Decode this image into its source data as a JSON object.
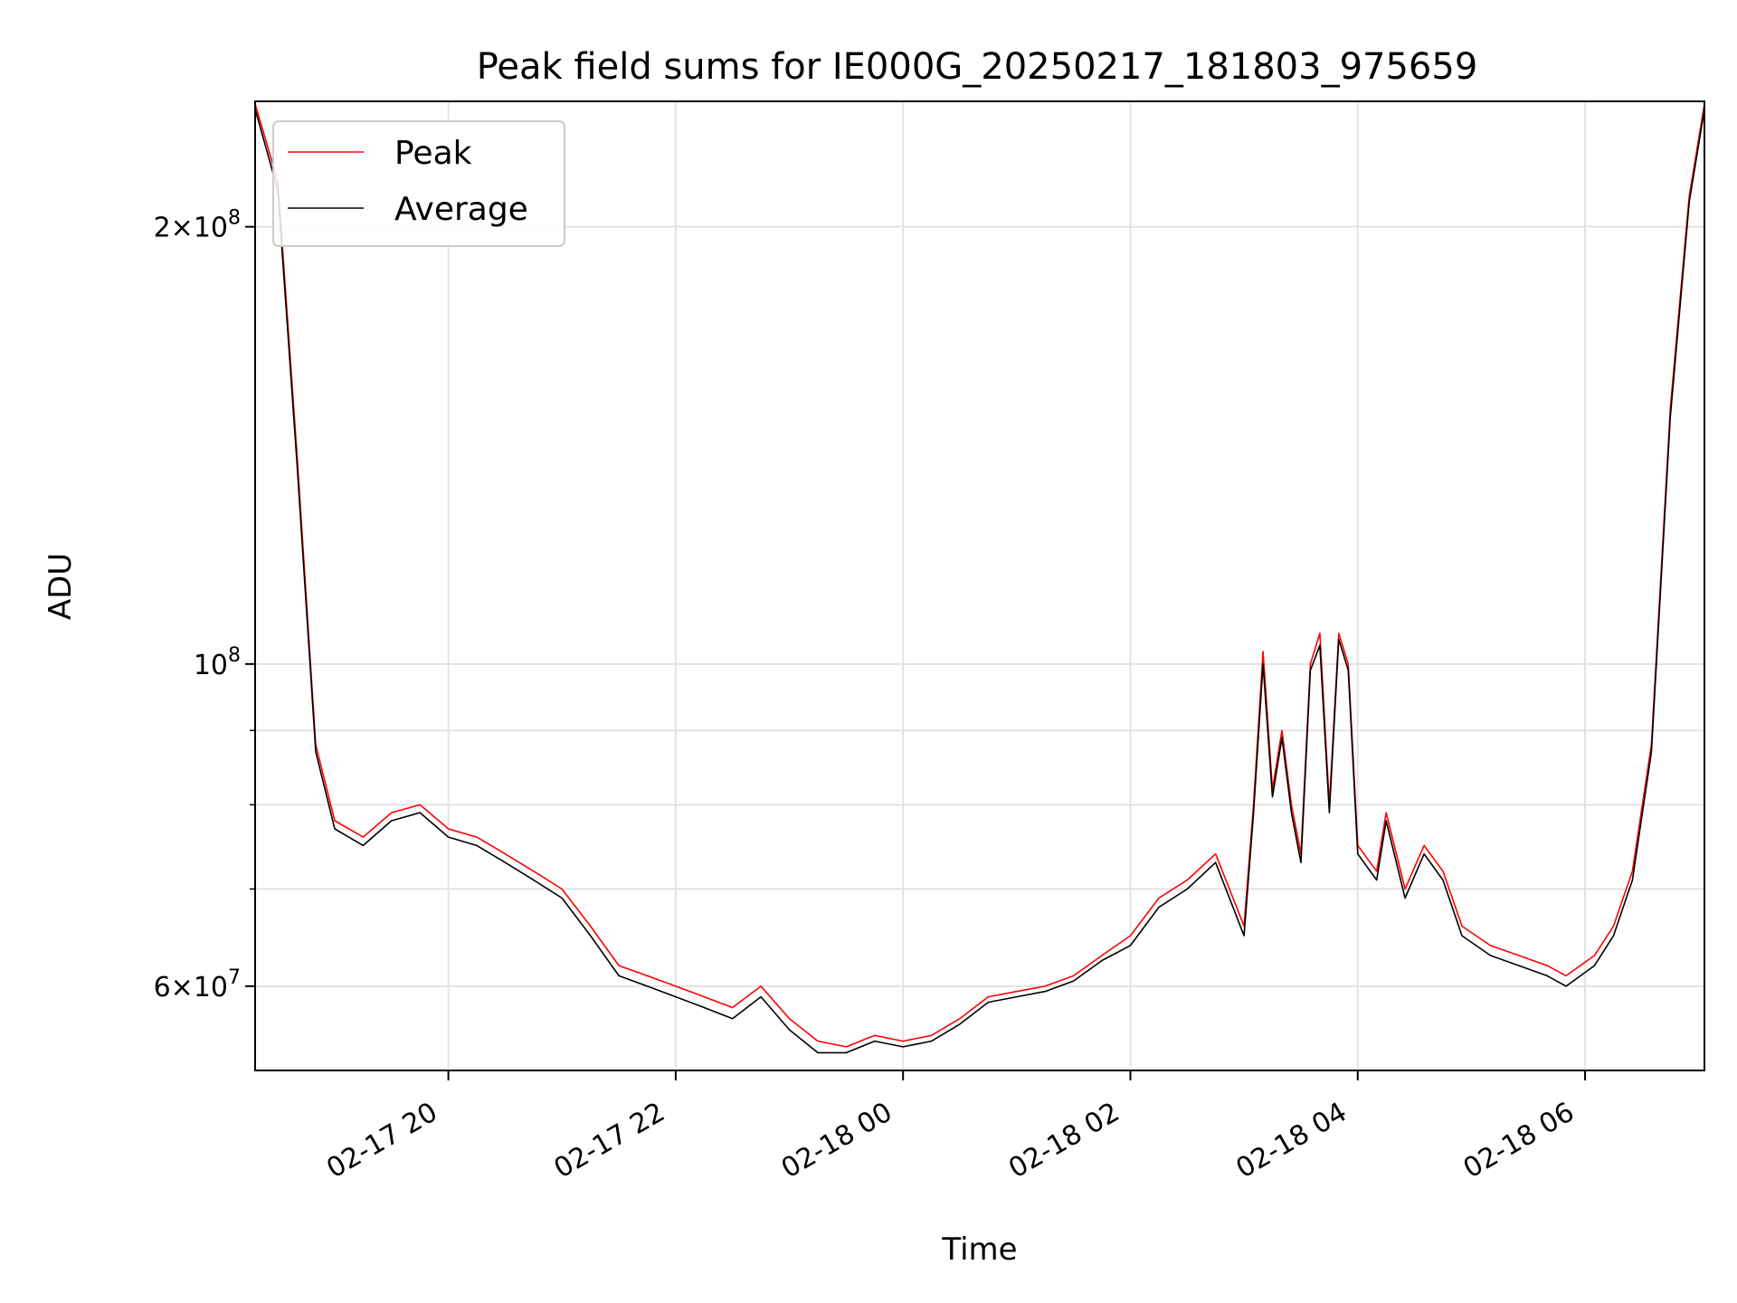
{
  "chart_data": {
    "type": "line",
    "title": "Peak field sums for IE000G_20250217_181803_975659",
    "xlabel": "Time",
    "ylabel": "ADU",
    "x_range": [
      "2025-02-17 18:18",
      "2025-02-18 07:03"
    ],
    "ylim": [
      52500000,
      244000000
    ],
    "yscale": "log",
    "grid": true,
    "legend_position": "top-left",
    "x_ticks": [
      {
        "label": "02-17 20",
        "value": "2025-02-17 20:00"
      },
      {
        "label": "02-17 22",
        "value": "2025-02-17 22:00"
      },
      {
        "label": "02-18 00",
        "value": "2025-02-18 00:00"
      },
      {
        "label": "02-18 02",
        "value": "2025-02-18 02:00"
      },
      {
        "label": "02-18 04",
        "value": "2025-02-18 04:00"
      },
      {
        "label": "02-18 06",
        "value": "2025-02-18 06:00"
      }
    ],
    "y_ticks": [
      {
        "label_base": "2×10",
        "label_exp": "8",
        "value": 200000000
      },
      {
        "label_base": "10",
        "label_exp": "8",
        "value": 100000000
      },
      {
        "label_base": "6×10",
        "label_exp": "7",
        "value": 60000000
      }
    ],
    "y_minor_ticks": [
      70000000,
      80000000,
      90000000
    ],
    "x": [
      "2025-02-17 18:18",
      "2025-02-17 18:30",
      "2025-02-17 18:40",
      "2025-02-17 18:50",
      "2025-02-17 19:00",
      "2025-02-17 19:15",
      "2025-02-17 19:30",
      "2025-02-17 19:45",
      "2025-02-17 20:00",
      "2025-02-17 20:15",
      "2025-02-17 20:30",
      "2025-02-17 20:45",
      "2025-02-17 21:00",
      "2025-02-17 21:15",
      "2025-02-17 21:30",
      "2025-02-17 21:45",
      "2025-02-17 22:00",
      "2025-02-17 22:15",
      "2025-02-17 22:30",
      "2025-02-17 22:45",
      "2025-02-17 23:00",
      "2025-02-17 23:15",
      "2025-02-17 23:30",
      "2025-02-17 23:45",
      "2025-02-18 00:00",
      "2025-02-18 00:15",
      "2025-02-18 00:30",
      "2025-02-18 00:45",
      "2025-02-18 01:00",
      "2025-02-18 01:15",
      "2025-02-18 01:30",
      "2025-02-18 01:45",
      "2025-02-18 02:00",
      "2025-02-18 02:15",
      "2025-02-18 02:30",
      "2025-02-18 02:45",
      "2025-02-18 03:00",
      "2025-02-18 03:05",
      "2025-02-18 03:10",
      "2025-02-18 03:15",
      "2025-02-18 03:20",
      "2025-02-18 03:25",
      "2025-02-18 03:30",
      "2025-02-18 03:35",
      "2025-02-18 03:40",
      "2025-02-18 03:45",
      "2025-02-18 03:50",
      "2025-02-18 03:55",
      "2025-02-18 04:00",
      "2025-02-18 04:10",
      "2025-02-18 04:15",
      "2025-02-18 04:25",
      "2025-02-18 04:35",
      "2025-02-18 04:45",
      "2025-02-18 04:55",
      "2025-02-18 05:10",
      "2025-02-18 05:25",
      "2025-02-18 05:40",
      "2025-02-18 05:50",
      "2025-02-18 06:05",
      "2025-02-18 06:15",
      "2025-02-18 06:25",
      "2025-02-18 06:35",
      "2025-02-18 06:45",
      "2025-02-18 06:55",
      "2025-02-18 07:03"
    ],
    "series": [
      {
        "name": "Peak",
        "color": "#ff0000",
        "values": [
          243000000,
          215000000,
          140000000,
          88000000,
          78000000,
          76000000,
          79000000,
          80000000,
          77000000,
          76000000,
          74000000,
          72000000,
          70000000,
          66000000,
          62000000,
          61000000,
          60000000,
          59000000,
          58000000,
          60000000,
          57000000,
          55000000,
          54500000,
          55500000,
          55000000,
          55500000,
          57000000,
          59000000,
          59500000,
          60000000,
          61000000,
          63000000,
          65000000,
          69000000,
          71000000,
          74000000,
          66000000,
          80000000,
          102000000,
          82000000,
          90000000,
          80000000,
          74000000,
          100000000,
          105000000,
          80000000,
          105000000,
          100000000,
          75000000,
          72000000,
          79000000,
          70000000,
          75000000,
          72000000,
          66000000,
          64000000,
          63000000,
          62000000,
          61000000,
          63000000,
          66000000,
          72000000,
          88000000,
          150000000,
          210000000,
          243000000
        ]
      },
      {
        "name": "Average",
        "color": "#000000",
        "values": [
          241000000,
          212000000,
          138000000,
          87000000,
          77000000,
          75000000,
          78000000,
          79000000,
          76000000,
          75000000,
          73000000,
          71000000,
          69000000,
          65000000,
          61000000,
          60000000,
          59000000,
          58000000,
          57000000,
          59000000,
          56000000,
          54000000,
          54000000,
          55000000,
          54500000,
          55000000,
          56500000,
          58500000,
          59000000,
          59500000,
          60500000,
          62500000,
          64000000,
          68000000,
          70000000,
          73000000,
          65000000,
          79000000,
          100000000,
          81000000,
          89000000,
          79000000,
          73000000,
          99000000,
          103000000,
          79000000,
          104000000,
          99000000,
          74000000,
          71000000,
          78000000,
          69000000,
          74000000,
          71000000,
          65000000,
          63000000,
          62000000,
          61000000,
          60000000,
          62000000,
          65000000,
          71000000,
          87000000,
          148000000,
          208000000,
          241000000
        ]
      }
    ]
  }
}
